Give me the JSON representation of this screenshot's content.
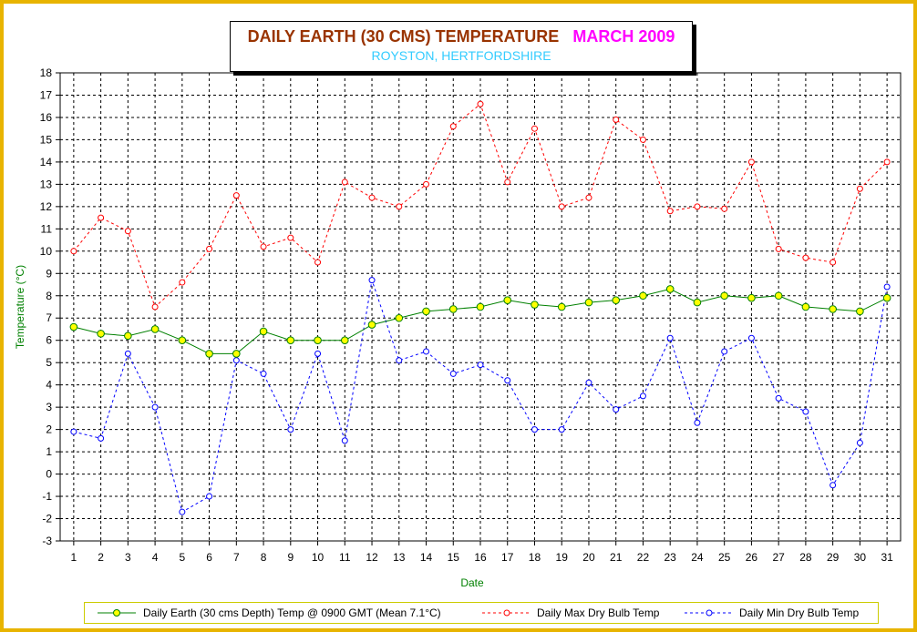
{
  "title": {
    "main": "DAILY EARTH (30 CMS) TEMPERATURE",
    "month": "MARCH 2009",
    "subtitle": "ROYSTON, HERTFORDSHIRE"
  },
  "legend": {
    "earth": "Daily Earth (30 cms Depth) Temp @ 0900 GMT (Mean 7.1°C)",
    "max": "Daily Max Dry Bulb Temp",
    "min": "Daily Min Dry Bulb Temp"
  },
  "chart_data": {
    "type": "line",
    "xlabel": "Date",
    "ylabel": "Temperature (°C)",
    "ylim": [
      -3,
      18
    ],
    "grid": true,
    "legend_position": "bottom",
    "x": [
      1,
      2,
      3,
      4,
      5,
      6,
      7,
      8,
      9,
      10,
      11,
      12,
      13,
      14,
      15,
      16,
      17,
      18,
      19,
      20,
      21,
      22,
      23,
      24,
      25,
      26,
      27,
      28,
      29,
      30,
      31
    ],
    "series": [
      {
        "name": "Daily Earth (30 cms Depth) Temp @ 0900 GMT (Mean 7.1°C)",
        "color": "#008000",
        "marker_fill": "#ffff00",
        "style": "solid",
        "values": [
          6.6,
          6.3,
          6.2,
          6.5,
          6.0,
          5.4,
          5.4,
          6.4,
          6.0,
          6.0,
          6.0,
          6.7,
          7.0,
          7.3,
          7.4,
          7.5,
          7.8,
          7.6,
          7.5,
          7.7,
          7.8,
          8.0,
          8.3,
          7.7,
          8.0,
          7.9,
          8.0,
          7.5,
          7.4,
          7.3,
          7.9
        ]
      },
      {
        "name": "Daily Max Dry Bulb Temp",
        "color": "#ff0000",
        "style": "dashed",
        "values": [
          10.0,
          11.5,
          10.9,
          7.5,
          8.6,
          10.1,
          12.5,
          10.2,
          10.6,
          9.5,
          13.1,
          12.4,
          12.0,
          13.0,
          15.6,
          16.6,
          13.1,
          15.5,
          12.0,
          12.4,
          15.9,
          15.0,
          11.8,
          12.0,
          11.9,
          14.0,
          10.1,
          9.7,
          9.5,
          12.8,
          14.0
        ]
      },
      {
        "name": "Daily Min Dry Bulb Temp",
        "color": "#0000ff",
        "style": "dashed",
        "values": [
          1.9,
          1.6,
          5.4,
          3.0,
          -1.7,
          -1.0,
          5.1,
          4.5,
          2.0,
          5.4,
          1.5,
          8.7,
          5.1,
          5.5,
          4.5,
          4.9,
          4.2,
          2.0,
          2.0,
          4.1,
          2.9,
          3.5,
          6.1,
          2.3,
          5.5,
          6.1,
          3.4,
          2.8,
          -0.5,
          1.4,
          8.4
        ]
      }
    ]
  }
}
